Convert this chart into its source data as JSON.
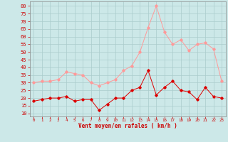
{
  "x": [
    0,
    1,
    2,
    3,
    4,
    5,
    6,
    7,
    8,
    9,
    10,
    11,
    12,
    13,
    14,
    15,
    16,
    17,
    18,
    19,
    20,
    21,
    22,
    23
  ],
  "mean_wind": [
    18,
    19,
    20,
    20,
    21,
    18,
    19,
    19,
    12,
    16,
    20,
    20,
    25,
    27,
    38,
    22,
    27,
    31,
    25,
    24,
    19,
    27,
    21,
    20
  ],
  "gust_wind": [
    30,
    31,
    31,
    32,
    37,
    36,
    35,
    30,
    28,
    30,
    32,
    38,
    41,
    50,
    66,
    80,
    63,
    55,
    58,
    51,
    55,
    56,
    52,
    31
  ],
  "bg_color": "#cce8e8",
  "grid_color": "#aacccc",
  "mean_color": "#dd0000",
  "gust_color": "#ff9999",
  "xlabel": "Vent moyen/en rafales ( km/h )",
  "xlabel_color": "#cc0000",
  "ylabel_color": "#cc0000",
  "yticks": [
    10,
    15,
    20,
    25,
    30,
    35,
    40,
    45,
    50,
    55,
    60,
    65,
    70,
    75,
    80
  ],
  "ylim": [
    8,
    83
  ],
  "xlim": [
    -0.5,
    23.5
  ],
  "tick_color": "#cc0000",
  "spine_color": "#888888"
}
